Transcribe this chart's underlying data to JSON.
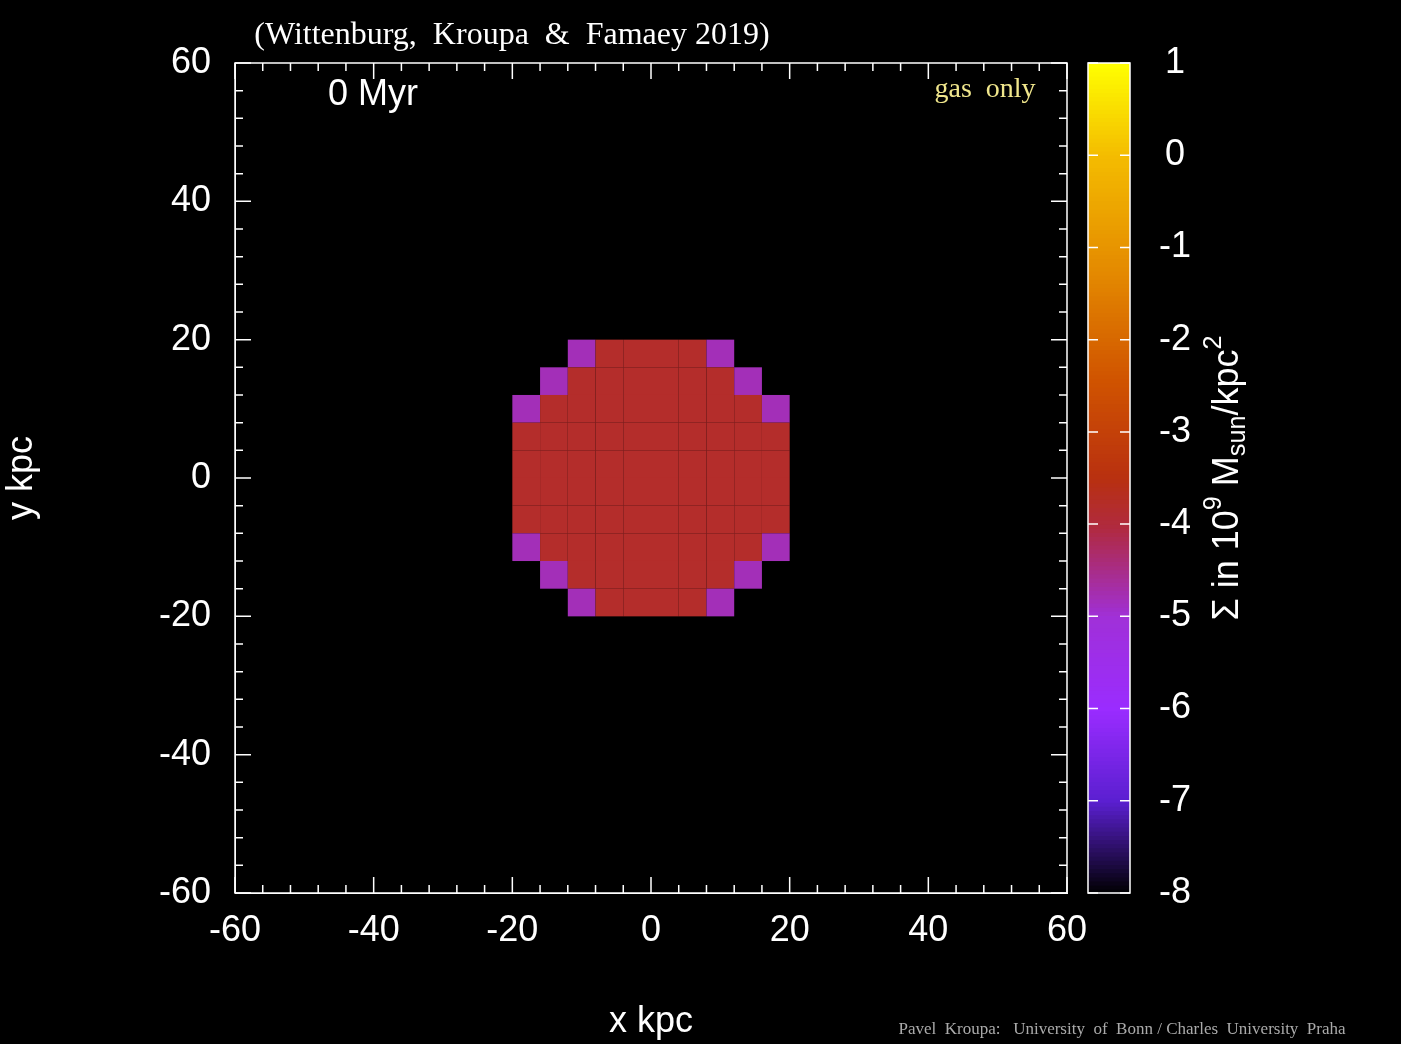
{
  "chart_data": {
    "type": "scatter",
    "title": "(Wittenburg,  Kroupa  &  Famaey 2019)",
    "xlabel": "x kpc",
    "ylabel": "y kpc",
    "clabel": "Σ in 10$^{9}$ M$_{sun}$/kpc$^{2}$",
    "annotations": [
      "0 Myr",
      "gas  only",
      "Pavel  Kroupa:   University  of  Bonn / Charles  University  Praha"
    ],
    "marker": "square",
    "x": [
      -10,
      -6,
      -2,
      2,
      6,
      10,
      -14,
      -10,
      -6,
      -2,
      2,
      6,
      10,
      14,
      -18,
      -14,
      -10,
      -6,
      -2,
      2,
      6,
      10,
      14,
      18,
      -18,
      -14,
      -10,
      -6,
      -2,
      2,
      6,
      10,
      14,
      18,
      -18,
      -14,
      -10,
      -6,
      -2,
      2,
      6,
      10,
      14,
      18,
      -18,
      -14,
      -10,
      -6,
      -2,
      2,
      6,
      10,
      14,
      18,
      -18,
      -14,
      -10,
      -6,
      -2,
      2,
      6,
      10,
      14,
      18,
      -18,
      -14,
      -10,
      -6,
      -2,
      2,
      6,
      10,
      14,
      18,
      -14,
      -10,
      -6,
      -2,
      2,
      6,
      10,
      14,
      -10,
      -6,
      -2,
      2,
      6,
      10
    ],
    "values": [
      18,
      18,
      18,
      18,
      18,
      18,
      14,
      14,
      14,
      14,
      14,
      14,
      14,
      14,
      10,
      10,
      10,
      10,
      10,
      10,
      10,
      10,
      10,
      10,
      6,
      6,
      6,
      6,
      6,
      6,
      6,
      6,
      6,
      6,
      2,
      2,
      2,
      2,
      2,
      2,
      2,
      2,
      2,
      2,
      -2,
      -2,
      -2,
      -2,
      -2,
      -2,
      -2,
      -2,
      -2,
      -2,
      -6,
      -6,
      -6,
      -6,
      -6,
      -6,
      -6,
      -6,
      -6,
      -6,
      -10,
      -10,
      -10,
      -10,
      -10,
      -10,
      -10,
      -10,
      -10,
      -10,
      -14,
      -14,
      -14,
      -14,
      -14,
      -14,
      -14,
      -14,
      -18,
      -18,
      -18,
      -18,
      -18,
      -18
    ],
    "cvalues": [
      -4.8,
      -3.8,
      -3.8,
      -3.8,
      -3.8,
      -4.8,
      -4.8,
      -3.8,
      -3.8,
      -3.8,
      -3.8,
      -3.8,
      -3.8,
      -4.8,
      -4.8,
      -3.8,
      -3.8,
      -3.8,
      -3.8,
      -3.8,
      -3.8,
      -3.8,
      -3.8,
      -4.8,
      -3.8,
      -3.8,
      -3.8,
      -3.8,
      -3.8,
      -3.8,
      -3.8,
      -3.8,
      -3.8,
      -3.8,
      -3.8,
      -3.8,
      -3.8,
      -3.8,
      -3.8,
      -3.8,
      -3.8,
      -3.8,
      -3.8,
      -3.8,
      -3.8,
      -3.8,
      -3.8,
      -3.8,
      -3.8,
      -3.8,
      -3.8,
      -3.8,
      -3.8,
      -3.8,
      -3.8,
      -3.8,
      -3.8,
      -3.8,
      -3.8,
      -3.8,
      -3.8,
      -3.8,
      -3.8,
      -3.8,
      -4.8,
      -3.8,
      -3.8,
      -3.8,
      -3.8,
      -3.8,
      -3.8,
      -3.8,
      -3.8,
      -4.8,
      -4.8,
      -3.8,
      -3.8,
      -3.8,
      -3.8,
      -3.8,
      -3.8,
      -4.8,
      -4.8,
      -3.8,
      -3.8,
      -3.8,
      -3.8,
      -4.8
    ],
    "xlim": [
      -60,
      60
    ],
    "ylim": [
      -60,
      60
    ],
    "xticks": [
      -60,
      {
        "value": -56,
        "label": null
      },
      {
        "value": -52,
        "label": null
      },
      {
        "value": -48,
        "label": null
      },
      {
        "value": -44,
        "label": null
      },
      -40,
      {
        "value": -36,
        "label": null
      },
      {
        "value": -32,
        "label": null
      },
      {
        "value": -28,
        "label": null
      },
      {
        "value": -24,
        "label": null
      },
      -20,
      {
        "value": -16,
        "label": null
      },
      {
        "value": -12,
        "label": null
      },
      {
        "value": -8,
        "label": null
      },
      {
        "value": -4,
        "label": null
      },
      0,
      {
        "value": 4,
        "label": null
      },
      {
        "value": 8,
        "label": null
      },
      {
        "value": 12,
        "label": null
      },
      {
        "value": 16,
        "label": null
      },
      20,
      {
        "value": 24,
        "label": null
      },
      {
        "value": 28,
        "label": null
      },
      {
        "value": 32,
        "label": null
      },
      {
        "value": 36,
        "label": null
      },
      40,
      {
        "value": 44,
        "label": null
      },
      {
        "value": 48,
        "label": null
      },
      {
        "value": 52,
        "label": null
      },
      {
        "value": 56,
        "label": null
      },
      60
    ],
    "yticks": [
      -60,
      {
        "value": -56,
        "label": null
      },
      {
        "value": -52,
        "label": null
      },
      {
        "value": -48,
        "label": null
      },
      {
        "value": -44,
        "label": null
      },
      -40,
      {
        "value": -36,
        "label": null
      },
      {
        "value": -32,
        "label": null
      },
      {
        "value": -28,
        "label": null
      },
      {
        "value": -24,
        "label": null
      },
      -20,
      {
        "value": -16,
        "label": null
      },
      {
        "value": -12,
        "label": null
      },
      {
        "value": -8,
        "label": null
      },
      {
        "value": -4,
        "label": null
      },
      0,
      {
        "value": 4,
        "label": null
      },
      {
        "value": 8,
        "label": null
      },
      {
        "value": 12,
        "label": null
      },
      {
        "value": 16,
        "label": null
      },
      20,
      {
        "value": 24,
        "label": null
      },
      {
        "value": 28,
        "label": null
      },
      {
        "value": 32,
        "label": null
      },
      {
        "value": 36,
        "label": null
      },
      40,
      {
        "value": 44,
        "label": null
      },
      {
        "value": 48,
        "label": null
      },
      {
        "value": 52,
        "label": null
      },
      {
        "value": 56,
        "label": null
      },
      60
    ],
    "clim": [
      -8,
      1
    ],
    "cticks": [
      -8,
      -7,
      -6,
      -5,
      -4,
      -3,
      -2,
      -1,
      0,
      1
    ]
  }
}
